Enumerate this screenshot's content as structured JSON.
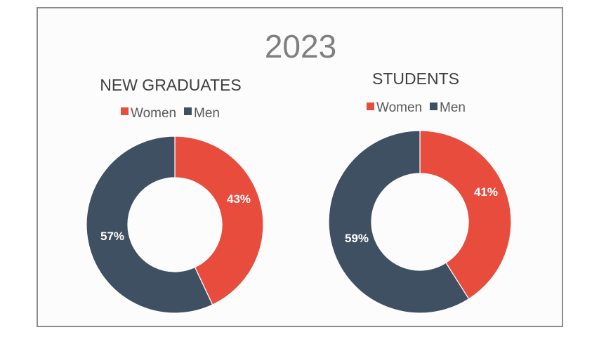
{
  "colors": {
    "women": "#e74c3c",
    "men": "#3f5062",
    "background": "#fcfcfc",
    "border": "#8c8c8c"
  },
  "title": "2023",
  "chart_data": [
    {
      "type": "pie",
      "style": "donut",
      "title": "NEW GRADUATES",
      "categories": [
        "Women",
        "Men"
      ],
      "values": [
        43,
        57
      ],
      "labels": [
        "43%",
        "57%"
      ],
      "legend": {
        "placement": "top",
        "entries": [
          "Women",
          "Men"
        ]
      }
    },
    {
      "type": "pie",
      "style": "donut",
      "title": "STUDENTS",
      "categories": [
        "Women",
        "Men"
      ],
      "values": [
        41,
        59
      ],
      "labels": [
        "41%",
        "59%"
      ],
      "legend": {
        "placement": "top",
        "entries": [
          "Women",
          "Men"
        ]
      }
    }
  ]
}
